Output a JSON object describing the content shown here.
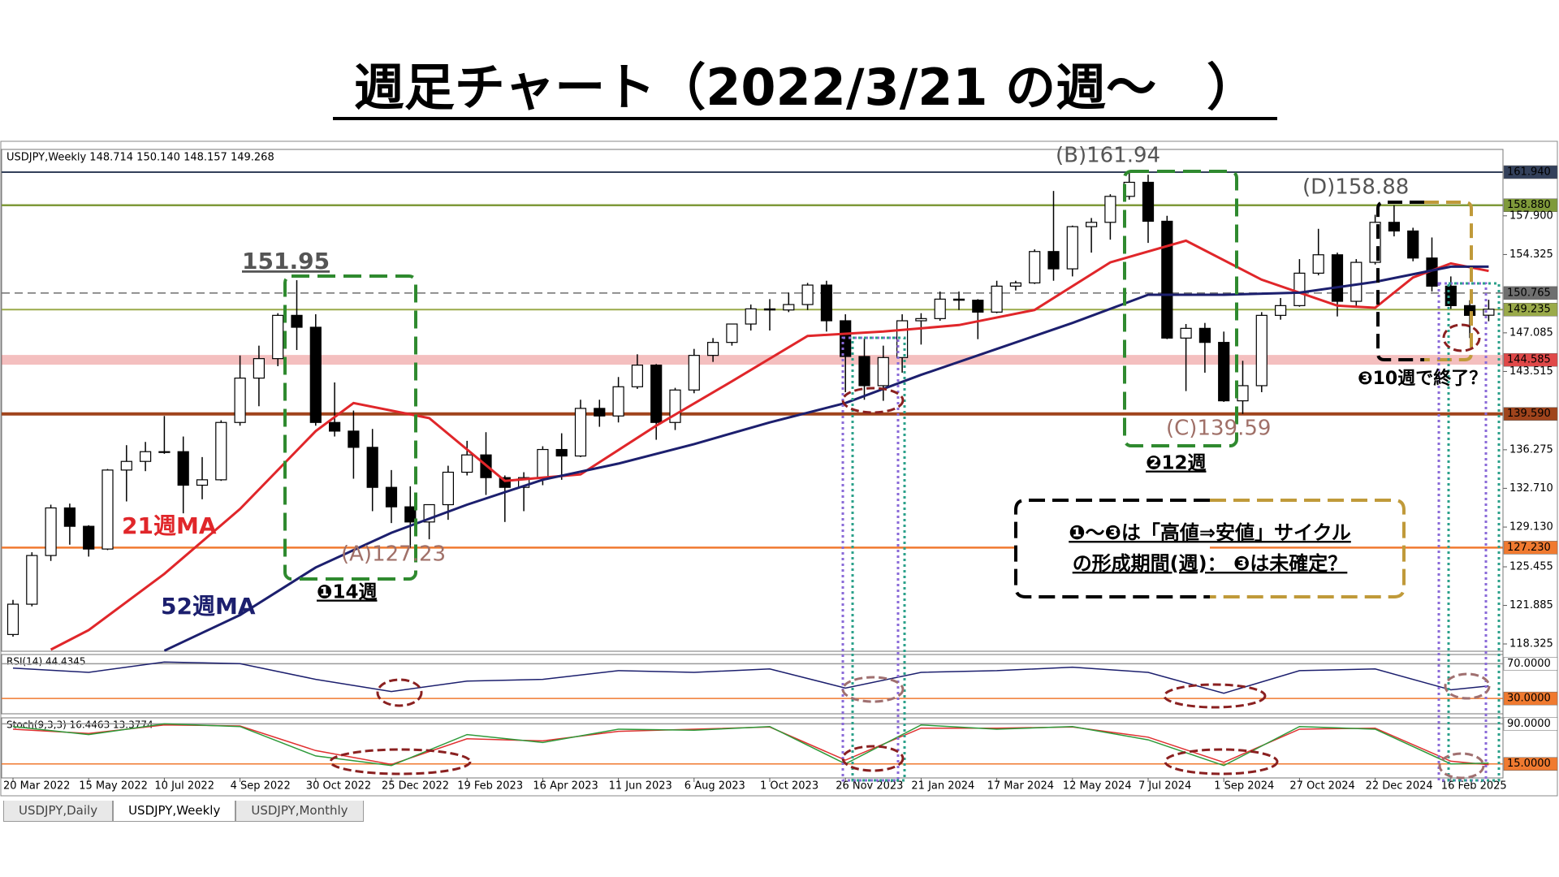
{
  "chart_data": {
    "type": "candlestick",
    "title": "週足チャート（2022/3/21 の週〜　）",
    "header": "USDJPY,Weekly  148.714 150.140 148.157 149.268",
    "categories": [
      "20 Mar 2022",
      null,
      null,
      null,
      "15 May 2022",
      null,
      null,
      null,
      "10 Jul 2022",
      null,
      null,
      null,
      "4 Sep 2022",
      null,
      null,
      null,
      "30 Oct 2022",
      null,
      null,
      null,
      "25 Dec 2022",
      null,
      null,
      null,
      "19 Feb 2023",
      null,
      null,
      null,
      "16 Apr 2023",
      null,
      null,
      null,
      "11 Jun 2023",
      null,
      null,
      null,
      "6 Aug 2023",
      null,
      null,
      null,
      "1 Oct 2023",
      null,
      null,
      null,
      "26 Nov 2023",
      null,
      null,
      null,
      "21 Jan 2024",
      null,
      null,
      null,
      "17 Mar 2024",
      null,
      null,
      null,
      "12 May 2024",
      null,
      null,
      null,
      "7 Jul 2024",
      null,
      null,
      null,
      "1 Sep 2024",
      null,
      null,
      null,
      "27 Oct 2024",
      null,
      null,
      null,
      "22 Dec 2024",
      null,
      null,
      null,
      "16 Feb 2025",
      null,
      null
    ],
    "ohlc": [
      [
        119.2,
        122.4,
        119.0,
        122.0
      ],
      [
        122.0,
        126.8,
        121.8,
        126.5
      ],
      [
        126.5,
        131.2,
        126.0,
        130.9
      ],
      [
        130.9,
        131.3,
        127.5,
        129.2
      ],
      [
        129.2,
        129.3,
        126.4,
        127.1
      ],
      [
        127.1,
        134.5,
        127.0,
        134.4
      ],
      [
        134.4,
        136.7,
        131.5,
        135.2
      ],
      [
        135.2,
        137.0,
        134.3,
        136.1
      ],
      [
        136.1,
        139.4,
        135.9,
        136.1
      ],
      [
        136.1,
        137.5,
        130.4,
        133.0
      ],
      [
        133.0,
        135.6,
        131.7,
        133.5
      ],
      [
        133.5,
        139.0,
        133.4,
        138.8
      ],
      [
        138.8,
        144.99,
        138.5,
        142.9
      ],
      [
        142.9,
        145.9,
        140.3,
        144.7
      ],
      [
        144.7,
        148.9,
        144.0,
        148.7
      ],
      [
        148.7,
        151.95,
        145.5,
        147.6
      ],
      [
        147.6,
        148.8,
        138.5,
        138.8
      ],
      [
        138.8,
        142.5,
        137.5,
        138.0
      ],
      [
        138.0,
        139.9,
        133.6,
        136.5
      ],
      [
        136.5,
        138.2,
        130.6,
        132.8
      ],
      [
        132.8,
        134.4,
        129.5,
        131.0
      ],
      [
        131.0,
        132.9,
        127.23,
        129.6
      ],
      [
        129.6,
        131.2,
        128.0,
        131.2
      ],
      [
        131.2,
        134.8,
        129.8,
        134.2
      ],
      [
        134.2,
        137.1,
        133.9,
        135.8
      ],
      [
        135.8,
        137.9,
        132.1,
        133.7
      ],
      [
        133.7,
        133.9,
        129.6,
        132.8
      ],
      [
        132.8,
        134.2,
        130.6,
        133.7
      ],
      [
        133.7,
        136.6,
        133.0,
        136.3
      ],
      [
        136.3,
        137.8,
        133.5,
        135.7
      ],
      [
        135.7,
        140.9,
        135.6,
        140.1
      ],
      [
        140.1,
        140.9,
        138.4,
        139.4
      ],
      [
        139.4,
        143.0,
        138.8,
        142.1
      ],
      [
        142.1,
        145.1,
        141.9,
        144.1
      ],
      [
        144.1,
        144.2,
        137.2,
        138.8
      ],
      [
        138.8,
        142.0,
        138.1,
        141.8
      ],
      [
        141.8,
        145.6,
        141.5,
        145.0
      ],
      [
        145.0,
        146.6,
        144.4,
        146.2
      ],
      [
        146.2,
        147.9,
        145.9,
        147.9
      ],
      [
        147.9,
        149.7,
        147.3,
        149.3
      ],
      [
        149.3,
        150.2,
        147.3,
        149.2
      ],
      [
        149.2,
        150.8,
        149.0,
        149.7
      ],
      [
        149.7,
        151.7,
        149.2,
        151.5
      ],
      [
        151.5,
        151.9,
        147.2,
        148.2
      ],
      [
        148.2,
        148.8,
        141.6,
        144.9
      ],
      [
        144.9,
        146.6,
        140.9,
        142.2
      ],
      [
        142.2,
        145.9,
        140.8,
        144.8
      ],
      [
        144.8,
        148.8,
        143.4,
        148.2
      ],
      [
        148.2,
        148.9,
        146.0,
        148.4
      ],
      [
        148.4,
        150.9,
        148.2,
        150.2
      ],
      [
        150.2,
        150.9,
        149.2,
        150.1
      ],
      [
        150.1,
        150.2,
        146.5,
        149.0
      ],
      [
        149.0,
        151.9,
        148.9,
        151.4
      ],
      [
        151.4,
        151.9,
        151.0,
        151.7
      ],
      [
        151.7,
        154.8,
        151.6,
        154.6
      ],
      [
        154.6,
        160.2,
        151.9,
        153.0
      ],
      [
        153.0,
        157.0,
        152.3,
        156.9
      ],
      [
        156.9,
        157.7,
        154.5,
        157.3
      ],
      [
        157.3,
        159.9,
        155.7,
        159.7
      ],
      [
        159.7,
        161.94,
        159.4,
        161.0
      ],
      [
        161.0,
        161.7,
        155.4,
        157.4
      ],
      [
        157.4,
        157.9,
        146.5,
        146.6
      ],
      [
        146.6,
        147.9,
        141.7,
        147.5
      ],
      [
        147.5,
        148.0,
        143.4,
        146.2
      ],
      [
        146.2,
        147.2,
        140.7,
        140.8
      ],
      [
        140.8,
        144.5,
        139.59,
        142.2
      ],
      [
        142.2,
        149.0,
        141.6,
        148.7
      ],
      [
        148.7,
        150.3,
        148.3,
        149.6
      ],
      [
        149.6,
        153.9,
        149.5,
        152.6
      ],
      [
        152.6,
        156.7,
        152.4,
        154.3
      ],
      [
        154.3,
        154.5,
        148.6,
        150.0
      ],
      [
        150.0,
        153.9,
        149.4,
        153.6
      ],
      [
        153.6,
        158.0,
        153.4,
        157.3
      ],
      [
        157.3,
        158.88,
        156.0,
        156.5
      ],
      [
        156.5,
        156.8,
        153.7,
        154.0
      ],
      [
        154.0,
        155.9,
        150.9,
        151.4
      ],
      [
        151.4,
        152.3,
        149.3,
        149.6
      ],
      [
        149.6,
        150.1,
        146.6,
        148.7
      ],
      [
        148.714,
        150.14,
        148.157,
        149.268
      ]
    ],
    "bull_color": "#ffffff",
    "bear_color": "#000000",
    "ma": [
      {
        "name": "21週MA",
        "color": "#e0262a",
        "x": [
          2,
          4,
          8,
          12,
          16,
          18,
          22,
          26,
          30,
          34,
          38,
          42,
          46,
          50,
          54,
          58,
          62,
          66,
          70,
          72,
          74,
          76,
          78
        ],
        "values": [
          117.8,
          119.6,
          124.8,
          130.8,
          138.0,
          140.6,
          139.2,
          133.4,
          134.0,
          138.5,
          142.6,
          146.8,
          147.2,
          147.8,
          149.2,
          153.6,
          155.6,
          152.0,
          149.6,
          149.4,
          152.2,
          153.5,
          152.8
        ]
      },
      {
        "name": "52週MA",
        "color": "#1c1f6e",
        "x": [
          8,
          12,
          16,
          20,
          24,
          28,
          32,
          36,
          40,
          44,
          48,
          52,
          56,
          60,
          64,
          68,
          72,
          76,
          78
        ],
        "values": [
          117.7,
          121.0,
          125.4,
          128.6,
          131.2,
          133.5,
          135.0,
          136.8,
          138.8,
          140.6,
          143.2,
          145.6,
          148.0,
          150.6,
          150.6,
          150.8,
          151.8,
          153.2,
          153.2
        ]
      }
    ],
    "ylim": [
      117.65,
      164.04
    ],
    "yticks": [
      {
        "value": 157.9,
        "label": "157.900"
      },
      154.325,
      147.085,
      143.515,
      136.275,
      {
        "value": 132.71,
        "label": "132.710"
      },
      {
        "value": 129.13,
        "label": "129.130"
      },
      125.455,
      121.885,
      118.325
    ],
    "levels": [
      {
        "value": 161.94,
        "label": "161.940",
        "color": "#33405a",
        "text_color": "#ffffff"
      },
      {
        "value": 158.88,
        "label": "158.880",
        "color": "#7f9a3a",
        "text_color": "#ffffff"
      },
      {
        "value": 150.765,
        "label": "150.765",
        "color": "#6f6f6f",
        "text_color": "#ffffff"
      },
      {
        "value": 149.235,
        "label": "149.235",
        "color": "#9aaa4a",
        "text_color": "#ffffff"
      },
      {
        "value": 144.585,
        "label": "144.585",
        "color": "#e04848",
        "text_color": "#ffffff"
      },
      {
        "value": 139.59,
        "label": "139.590",
        "color": "#a0441c",
        "text_color": "#ffffff"
      },
      {
        "value": 127.23,
        "label": "127.230",
        "color": "#f07a30",
        "text_color": "#ffffff"
      }
    ],
    "annotations": [
      "151.95",
      "(A)127.23",
      "(B)161.94",
      "(C)139.59",
      "(D)158.88",
      "21週MA",
      "52週MA",
      "❶14週",
      "❷12週",
      "❸10週で終了？",
      "❶〜❸は「高値⇒安値」サイクル",
      "の形成期間(週)： ❸は未確定？"
    ],
    "rsi": {
      "label": "RSI(14) 44.4345",
      "color": "#1c1f6e",
      "ylim": [
        12.4,
        80.6
      ],
      "levels": [
        {
          "value": 70,
          "label": "70.0000",
          "color": "#ffffff",
          "text_color": "#000000"
        },
        {
          "value": 30,
          "label": "30.0000",
          "color": "#f07a30",
          "text_color": "#ffffff"
        }
      ],
      "x": [
        0,
        4,
        8,
        12,
        16,
        20,
        24,
        28,
        32,
        36,
        40,
        44,
        48,
        52,
        56,
        60,
        64,
        68,
        72,
        76,
        78
      ],
      "values": [
        65,
        60,
        72,
        70,
        52,
        38,
        50,
        52,
        62,
        60,
        64,
        42,
        60,
        62,
        66,
        60,
        36,
        62,
        64,
        40,
        44.4345
      ]
    },
    "stoch": {
      "label": "Stoch(9,3,3) 16.4463 13.3774",
      "main_color": "#2e9a3a",
      "signal_color": "#e03030",
      "ylim": [
        -11.25,
        101.25
      ],
      "levels": [
        {
          "value": 90,
          "label": "90.0000",
          "color": "#ffffff",
          "text_color": "#000000"
        },
        {
          "value": 15,
          "label": "15.0000",
          "color": "#f07a30",
          "text_color": "#ffffff"
        }
      ],
      "x": [
        0,
        4,
        8,
        12,
        16,
        20,
        24,
        28,
        32,
        36,
        40,
        44,
        48,
        52,
        56,
        60,
        64,
        68,
        72,
        76,
        78
      ],
      "main": [
        85,
        70,
        90,
        85,
        30,
        12,
        70,
        55,
        80,
        78,
        85,
        15,
        88,
        80,
        85,
        60,
        12,
        85,
        80,
        15,
        16.4463
      ],
      "signal": [
        80,
        72,
        88,
        86,
        40,
        14,
        62,
        58,
        76,
        80,
        84,
        22,
        82,
        82,
        84,
        65,
        18,
        80,
        82,
        20,
        13.3774
      ]
    }
  },
  "tabs": [
    "USDJPY,Daily",
    "USDJPY,Weekly",
    "USDJPY,Monthly"
  ]
}
